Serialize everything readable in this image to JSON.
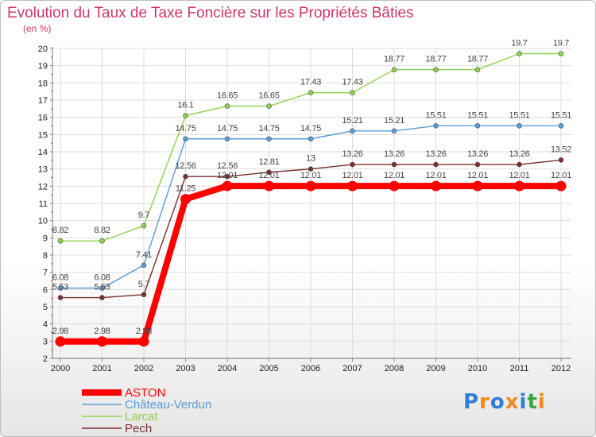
{
  "chart_data": {
    "type": "line",
    "title": "Evolution du Taux de Taxe Foncière sur les Propriétés Bâties",
    "ylabel": "(en %)",
    "xlabel": "",
    "ylim": [
      2,
      20
    ],
    "yticks": [
      2,
      3,
      4,
      5,
      6,
      7,
      8,
      9,
      10,
      11,
      12,
      13,
      14,
      15,
      16,
      17,
      18,
      19,
      20
    ],
    "x": [
      "2000",
      "2001",
      "2002",
      "2003",
      "2004",
      "2005",
      "2006",
      "2007",
      "2008",
      "2009",
      "2010",
      "2011",
      "2012"
    ],
    "series": [
      {
        "name": "ASTON",
        "color": "#ff0000",
        "values": [
          2.98,
          2.98,
          2.98,
          11.25,
          12.01,
          12.01,
          12.01,
          12.01,
          12.01,
          12.01,
          12.01,
          12.01,
          12.01
        ],
        "labels": [
          "2.98",
          "2.98",
          "2.98",
          "11.25",
          "12.01",
          "12.01",
          "12.01",
          "12.01",
          "12.01",
          "12.01",
          "12.01",
          "12.01",
          "12.01"
        ]
      },
      {
        "name": "Château-Verdun",
        "color": "#5b9bd5",
        "values": [
          6.08,
          6.08,
          7.41,
          14.75,
          14.75,
          14.75,
          14.75,
          15.21,
          15.21,
          15.51,
          15.51,
          15.51,
          15.51
        ],
        "labels": [
          "6.08",
          "6.08",
          "7.41",
          "14.75",
          "14.75",
          "14.75",
          "14.75",
          "15.21",
          "15.21",
          "15.51",
          "15.51",
          "15.51",
          "15.51"
        ]
      },
      {
        "name": "Larcat",
        "color": "#8ed24b",
        "values": [
          8.82,
          8.82,
          9.7,
          16.1,
          16.65,
          16.65,
          17.43,
          17.43,
          18.77,
          18.77,
          18.77,
          19.7,
          19.7
        ],
        "labels": [
          "8.82",
          "8.82",
          "9.7",
          "16.1",
          "16.65",
          "16.65",
          "17.43",
          "17.43",
          "18.77",
          "18.77",
          "18.77",
          "19.7",
          "19.7"
        ]
      },
      {
        "name": "Pech",
        "color": "#7a2e2e",
        "values": [
          5.53,
          5.53,
          5.7,
          12.56,
          12.56,
          12.81,
          13.0,
          13.26,
          13.26,
          13.26,
          13.26,
          13.26,
          13.52
        ],
        "labels": [
          "5.53",
          "5.53",
          "5.7",
          "12.56",
          "12.56",
          "12.81",
          "13",
          "13.26",
          "13.26",
          "13.26",
          "13.26",
          "13.26",
          "13.52"
        ]
      }
    ],
    "legend": "bottom-left"
  },
  "logo": {
    "letters": [
      "P",
      "r",
      "o",
      "x",
      "i",
      "t",
      "i"
    ],
    "colors": [
      "#2f7fd6",
      "#f08a1c",
      "#2f7fd6",
      "#f08a1c",
      "#2f7fd6",
      "#3aa63a",
      "#f08a1c"
    ]
  }
}
